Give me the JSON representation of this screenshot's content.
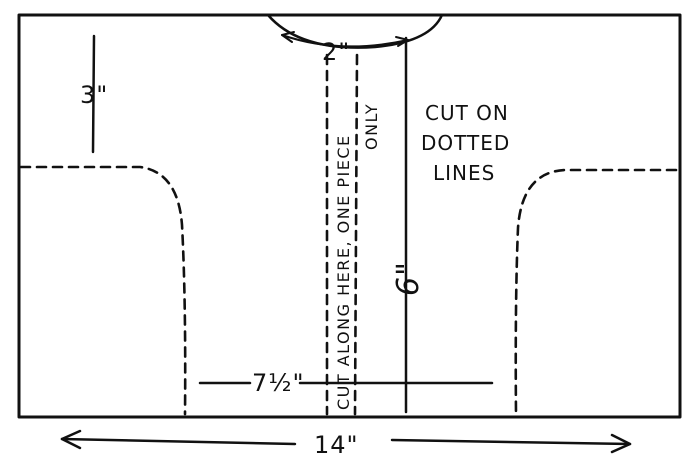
{
  "diagram": {
    "labels": {
      "top_dim": "2\"",
      "left_dim": "3\"",
      "center_dim": "6\"",
      "lower_dim": "7½\"",
      "bottom_dim": "14\"",
      "cut_note_line1": "CUT ON",
      "cut_note_line2": "DOTTED",
      "cut_note_line3": "LINES",
      "vertical_note_line1": "CUT ALONG HERE, ONE PIECE",
      "vertical_note_line2": "ONLY"
    },
    "colors": {
      "ink": "#111111",
      "paper": "#ffffff"
    }
  }
}
